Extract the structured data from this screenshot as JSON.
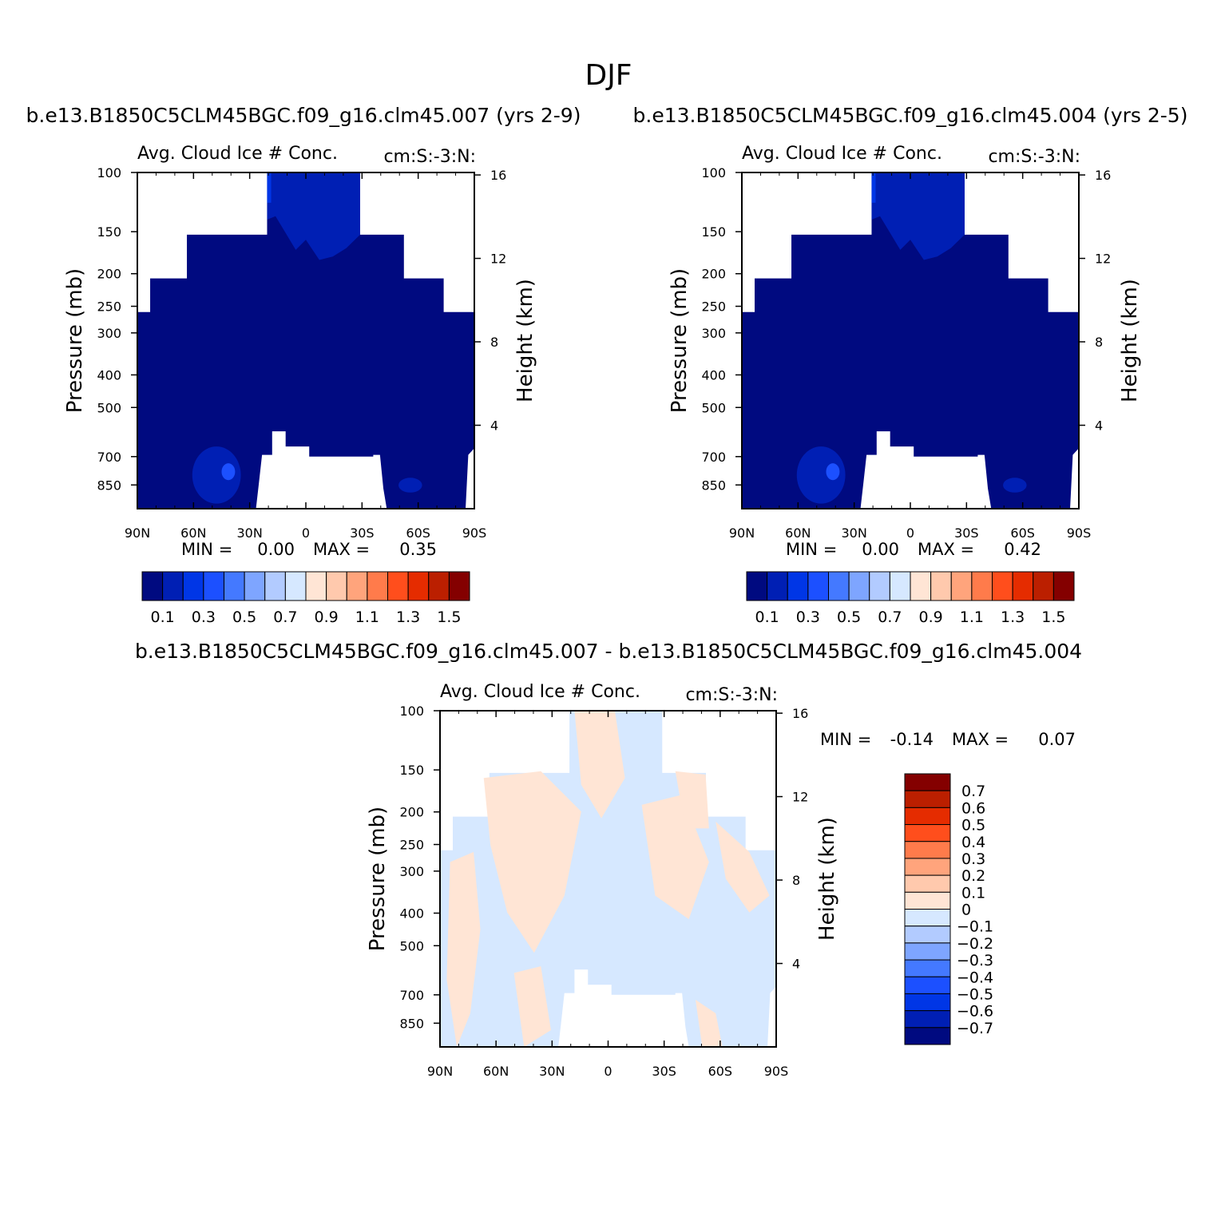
{
  "figure": {
    "title": "DJF"
  },
  "colors": {
    "abs_levels": [
      "#000a80",
      "#001fb4",
      "#0036e6",
      "#1c50ff",
      "#4479ff",
      "#7ea5ff",
      "#b2cbff",
      "#d6e8ff",
      "#ffe5d5",
      "#ffc9ad",
      "#ffa47c",
      "#ff7b4b",
      "#ff4e1c",
      "#e52c00",
      "#bb1f00",
      "#840000"
    ],
    "diff_levels": [
      "#000a80",
      "#001fb4",
      "#0036e6",
      "#1c50ff",
      "#4479ff",
      "#7ea5ff",
      "#b2cbff",
      "#d6e8ff",
      "#ffe5d5",
      "#ffc9ad",
      "#ffa47c",
      "#ff7b4b",
      "#ff4e1c",
      "#e52c00",
      "#bb1f00",
      "#840000"
    ],
    "missing": "#ffffff"
  },
  "chart_data": [
    {
      "type": "heatmap",
      "title": "b.e13.B1850C5CLM45BGC.f09_g16.clm45.007 (yrs 2-9)",
      "subtitle_left": "Avg. Cloud Ice # Conc.",
      "subtitle_right": "cm:S:-3:N:",
      "xlabel": "",
      "ylabel": "Pressure (mb)",
      "y2label": "Height (km)",
      "x_ticks": [
        "90N",
        "60N",
        "30N",
        "0",
        "30S",
        "60S",
        "90S"
      ],
      "y_ticks": [
        "100",
        "150",
        "200",
        "250",
        "300",
        "400",
        "500",
        "700",
        "850"
      ],
      "y2_ticks": [
        "16",
        "12",
        "8",
        "4"
      ],
      "ylim": [
        100,
        1000
      ],
      "y_scale": "log",
      "stats": {
        "min_label": "MIN =",
        "min": "0.00",
        "max_label": "MAX =",
        "max": "0.35"
      },
      "colorbar": {
        "orientation": "horizontal",
        "labels": [
          "0.1",
          "0.3",
          "0.5",
          "0.7",
          "0.9",
          "1.1",
          "1.3",
          "1.5"
        ]
      }
    },
    {
      "type": "heatmap",
      "title": "b.e13.B1850C5CLM45BGC.f09_g16.clm45.004 (yrs 2-5)",
      "subtitle_left": "Avg. Cloud Ice # Conc.",
      "subtitle_right": "cm:S:-3:N:",
      "xlabel": "",
      "ylabel": "Pressure (mb)",
      "y2label": "Height (km)",
      "x_ticks": [
        "90N",
        "60N",
        "30N",
        "0",
        "30S",
        "60S",
        "90S"
      ],
      "y_ticks": [
        "100",
        "150",
        "200",
        "250",
        "300",
        "400",
        "500",
        "700",
        "850"
      ],
      "y2_ticks": [
        "16",
        "12",
        "8",
        "4"
      ],
      "ylim": [
        100,
        1000
      ],
      "y_scale": "log",
      "stats": {
        "min_label": "MIN =",
        "min": "0.00",
        "max_label": "MAX =",
        "max": "0.42"
      },
      "colorbar": {
        "orientation": "horizontal",
        "labels": [
          "0.1",
          "0.3",
          "0.5",
          "0.7",
          "0.9",
          "1.1",
          "1.3",
          "1.5"
        ]
      }
    },
    {
      "type": "heatmap",
      "title": "b.e13.B1850C5CLM45BGC.f09_g16.clm45.007 - b.e13.B1850C5CLM45BGC.f09_g16.clm45.004",
      "subtitle_left": "Avg. Cloud Ice # Conc.",
      "subtitle_right": "cm:S:-3:N:",
      "xlabel": "",
      "ylabel": "Pressure (mb)",
      "y2label": "Height (km)",
      "x_ticks": [
        "90N",
        "60N",
        "30N",
        "0",
        "30S",
        "60S",
        "90S"
      ],
      "y_ticks": [
        "100",
        "150",
        "200",
        "250",
        "300",
        "400",
        "500",
        "700",
        "850"
      ],
      "y2_ticks": [
        "16",
        "12",
        "8",
        "4"
      ],
      "ylim": [
        100,
        1000
      ],
      "y_scale": "log",
      "stats": {
        "min_label": "MIN =",
        "min": "-0.14",
        "max_label": "MAX =",
        "max": "0.07"
      },
      "colorbar": {
        "orientation": "vertical",
        "labels": [
          "0.7",
          "0.6",
          "0.5",
          "0.4",
          "0.3",
          "0.2",
          "0.1",
          "0",
          "-0.1",
          "-0.2",
          "-0.3",
          "-0.4",
          "-0.5",
          "-0.6",
          "-0.7"
        ]
      }
    }
  ]
}
